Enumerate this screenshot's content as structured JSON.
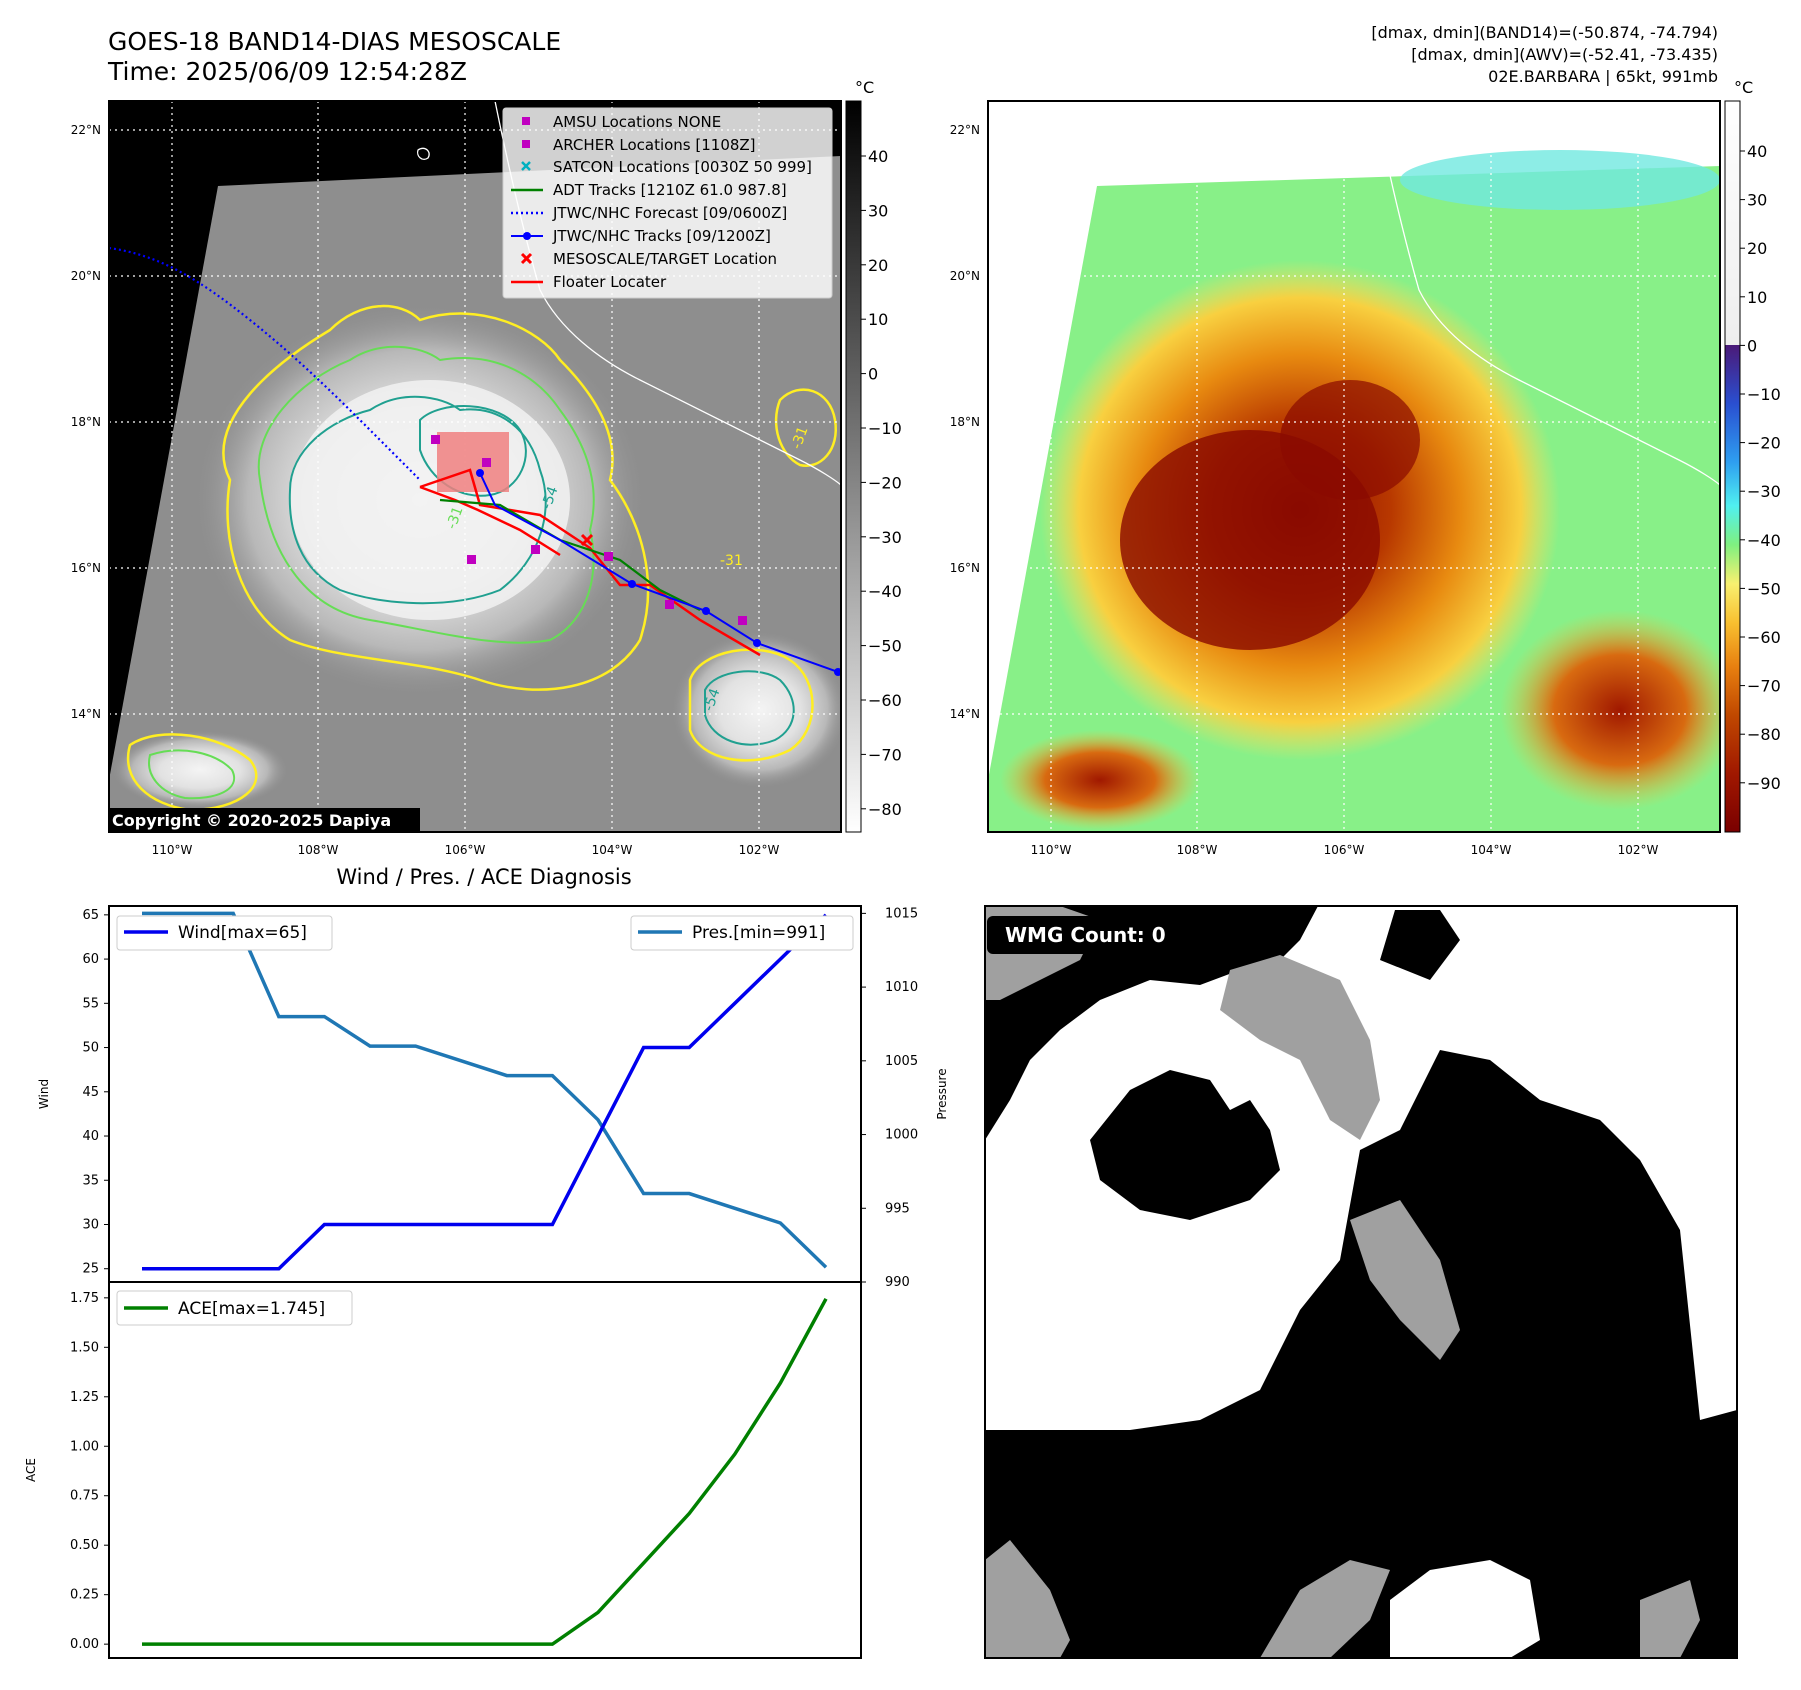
{
  "header": {
    "title_line1": "GOES-18 BAND14-DIAS MESOSCALE",
    "title_line2": "Time: 2025/06/09 12:54:28Z",
    "stats_line1": "[dmax, dmin](BAND14)=(-50.874, -74.794)",
    "stats_line2": "[dmax, dmin](AWV)=(-52.41, -73.435)",
    "stats_line3": "02E.BARBARA | 65kt, 991mb"
  },
  "maps": {
    "lon_ticks": [
      "110°W",
      "108°W",
      "106°W",
      "104°W",
      "102°W"
    ],
    "lat_ticks": [
      "22°N",
      "20°N",
      "18°N",
      "16°N",
      "14°N"
    ],
    "copyright": "Copyright © 2020-2025 Dapiya",
    "colorbar_unit": "°C",
    "ir_colorbar_ticks": [
      "40",
      "30",
      "20",
      "10",
      "0",
      "−10",
      "−20",
      "−30",
      "−40",
      "−50",
      "−60",
      "−70",
      "−80"
    ],
    "awv_colorbar_ticks": [
      "40",
      "30",
      "20",
      "10",
      "0",
      "−10",
      "−20",
      "−30",
      "−40",
      "−50",
      "−60",
      "−70",
      "−80",
      "−90"
    ],
    "contour_labels": [
      "-31",
      "-54",
      "-31",
      "-54",
      "-31"
    ],
    "legend": [
      {
        "label": "AMSU Locations NONE",
        "color": "#c000c0",
        "marker": "square"
      },
      {
        "label": "ARCHER Locations [1108Z]",
        "color": "#c000c0",
        "marker": "square"
      },
      {
        "label": "SATCON Locations [0030Z 50 999]",
        "color": "#00b0c0",
        "marker": "x"
      },
      {
        "label": "ADT Tracks [1210Z 61.0 987.8]",
        "color": "#008000",
        "marker": "line"
      },
      {
        "label": "JTWC/NHC Forecast [09/0600Z]",
        "color": "#0000ff",
        "marker": "dotted"
      },
      {
        "label": "JTWC/NHC Tracks [09/1200Z]",
        "color": "#0000ff",
        "marker": "line-dot"
      },
      {
        "label": "MESOSCALE/TARGET Location",
        "color": "#ff0000",
        "marker": "x"
      },
      {
        "label": "Floater Locater",
        "color": "#ff0000",
        "marker": "line"
      }
    ],
    "colors": {
      "track_red": "#ff0000",
      "track_blue": "#0000ff",
      "adt_green": "#008000",
      "contour_yellow": "#ffee22",
      "contour_lightgreen": "#66dd55",
      "contour_teal": "#20a090",
      "awv_background": "#88f088"
    }
  },
  "wmg": {
    "label": "WMG Count: 0"
  },
  "chart_data": [
    {
      "type": "line",
      "title": "Wind / Pres. / ACE Diagnosis",
      "ylabel": "Wind",
      "ylabel_right": "Pressure",
      "ylim": [
        23.5,
        66
      ],
      "ylim_right": [
        990,
        1015.5
      ],
      "yticks": [
        25,
        30,
        35,
        40,
        45,
        50,
        55,
        60,
        65
      ],
      "yticks_right": [
        990,
        995,
        1000,
        1005,
        1010,
        1015
      ],
      "series": [
        {
          "name": "Wind[max=65]",
          "color": "#0000ee",
          "values": [
            25,
            25,
            25,
            25,
            30,
            30,
            30,
            30,
            30,
            30,
            40,
            50,
            50,
            55,
            60,
            65
          ]
        },
        {
          "name": "Pres.[min=991]",
          "color": "#1f77b4",
          "axis": "right",
          "values": [
            1015,
            1015,
            1015,
            1008,
            1008,
            1006,
            1006,
            1005,
            1004,
            1004,
            1001,
            996,
            996,
            995,
            994,
            991
          ]
        }
      ],
      "legend_left": "top-left",
      "legend_right": "top-right"
    },
    {
      "type": "line",
      "ylabel": "ACE",
      "ylim": [
        -0.07,
        1.83
      ],
      "yticks": [
        "0.00",
        "0.25",
        "0.50",
        "0.75",
        "1.00",
        "1.25",
        "1.50",
        "1.75"
      ],
      "series": [
        {
          "name": "ACE[max=1.745]",
          "color": "#008000",
          "values": [
            0,
            0,
            0,
            0,
            0,
            0,
            0,
            0,
            0,
            0,
            0.16,
            0.41,
            0.66,
            0.96,
            1.32,
            1.745
          ]
        }
      ],
      "legend": "top-left"
    }
  ]
}
